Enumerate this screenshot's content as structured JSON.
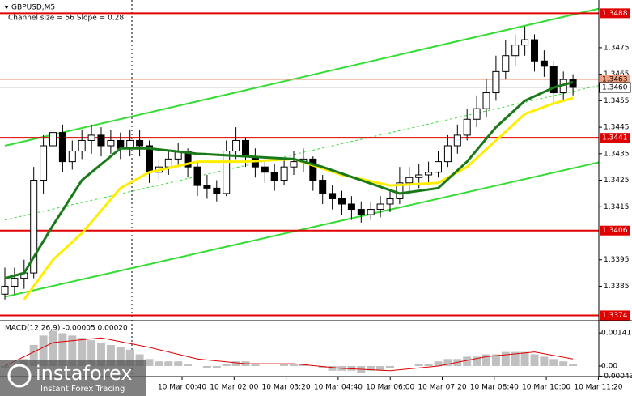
{
  "chart_data": {
    "type": "candlestick",
    "symbol_label": "GBPUSD,M5",
    "subtitle": "Channel size = 56 Slope = 0.28",
    "candles": [
      [
        1.3382,
        1.3392,
        1.338,
        1.3385
      ],
      [
        1.3385,
        1.3392,
        1.3382,
        1.3388
      ],
      [
        1.3388,
        1.3395,
        1.3384,
        1.339
      ],
      [
        1.339,
        1.343,
        1.3388,
        1.3425
      ],
      [
        1.3425,
        1.3442,
        1.342,
        1.3438
      ],
      [
        1.3438,
        1.3447,
        1.3432,
        1.3443
      ],
      [
        1.3443,
        1.3446,
        1.3428,
        1.3432
      ],
      [
        1.3432,
        1.344,
        1.3429,
        1.3436
      ],
      [
        1.3436,
        1.3444,
        1.3433,
        1.344
      ],
      [
        1.344,
        1.3446,
        1.3435,
        1.3442
      ],
      [
        1.3442,
        1.3445,
        1.3434,
        1.3438
      ],
      [
        1.3438,
        1.3444,
        1.3435,
        1.344
      ],
      [
        1.344,
        1.3443,
        1.3433,
        1.3437
      ],
      [
        1.3437,
        1.3444,
        1.3434,
        1.344
      ],
      [
        1.344,
        1.3444,
        1.3434,
        1.3438
      ],
      [
        1.3438,
        1.344,
        1.3424,
        1.3428
      ],
      [
        1.3428,
        1.3433,
        1.3425,
        1.343
      ],
      [
        1.343,
        1.3436,
        1.3427,
        1.3433
      ],
      [
        1.3433,
        1.3439,
        1.343,
        1.3436
      ],
      [
        1.3436,
        1.3437,
        1.3426,
        1.343
      ],
      [
        1.343,
        1.3432,
        1.3419,
        1.3423
      ],
      [
        1.3423,
        1.3427,
        1.3418,
        1.3422
      ],
      [
        1.3422,
        1.3425,
        1.3417,
        1.342
      ],
      [
        1.342,
        1.344,
        1.3419,
        1.3436
      ],
      [
        1.3436,
        1.3445,
        1.3433,
        1.344
      ],
      [
        1.344,
        1.3441,
        1.343,
        1.3434
      ],
      [
        1.3434,
        1.3437,
        1.3426,
        1.343
      ],
      [
        1.343,
        1.3433,
        1.3424,
        1.3428
      ],
      [
        1.3428,
        1.3431,
        1.3421,
        1.3425
      ],
      [
        1.3425,
        1.3433,
        1.3423,
        1.343
      ],
      [
        1.343,
        1.3436,
        1.3427,
        1.3432
      ],
      [
        1.3432,
        1.3437,
        1.3428,
        1.3433
      ],
      [
        1.3433,
        1.3434,
        1.3421,
        1.3425
      ],
      [
        1.3425,
        1.3427,
        1.3416,
        1.342
      ],
      [
        1.342,
        1.3423,
        1.3414,
        1.3418
      ],
      [
        1.3418,
        1.3421,
        1.3412,
        1.3416
      ],
      [
        1.3416,
        1.3419,
        1.341,
        1.3414
      ],
      [
        1.3414,
        1.3417,
        1.3409,
        1.3412
      ],
      [
        1.3412,
        1.3417,
        1.341,
        1.3414
      ],
      [
        1.3414,
        1.3419,
        1.3411,
        1.3416
      ],
      [
        1.3416,
        1.3421,
        1.3413,
        1.3418
      ],
      [
        1.3418,
        1.343,
        1.3416,
        1.3424
      ],
      [
        1.3424,
        1.343,
        1.342,
        1.3426
      ],
      [
        1.3426,
        1.3431,
        1.3422,
        1.3427
      ],
      [
        1.3427,
        1.3432,
        1.3423,
        1.3428
      ],
      [
        1.3428,
        1.3436,
        1.3426,
        1.3432
      ],
      [
        1.3432,
        1.3442,
        1.343,
        1.3438
      ],
      [
        1.3438,
        1.3446,
        1.3435,
        1.3442
      ],
      [
        1.3442,
        1.3452,
        1.344,
        1.3448
      ],
      [
        1.3448,
        1.3457,
        1.3445,
        1.3452
      ],
      [
        1.3452,
        1.3463,
        1.3449,
        1.3458
      ],
      [
        1.3458,
        1.3472,
        1.3455,
        1.3466
      ],
      [
        1.3466,
        1.3478,
        1.3463,
        1.3472
      ],
      [
        1.3472,
        1.348,
        1.3468,
        1.3476
      ],
      [
        1.3476,
        1.3483,
        1.3472,
        1.3478
      ],
      [
        1.3478,
        1.348,
        1.3466,
        1.347
      ],
      [
        1.347,
        1.3474,
        1.3464,
        1.3468
      ],
      [
        1.3468,
        1.347,
        1.3454,
        1.3458
      ],
      [
        1.3458,
        1.3466,
        1.3455,
        1.3463
      ],
      [
        1.3463,
        1.3465,
        1.3457,
        1.346
      ]
    ],
    "candle_colors": {
      "up": "#ffffff",
      "down": "#000000"
    },
    "ylim": [
      1.3372,
      1.3493
    ],
    "yticks": [
      1.3475,
      1.3465,
      1.3455,
      1.3445,
      1.3435,
      1.3425,
      1.3415,
      1.3395,
      1.3385
    ],
    "x_labels": [
      "10 Mar 00:40",
      "10 Mar 02:00",
      "10 Mar 03:20",
      "10 Mar 04:40",
      "10 Mar 06:00",
      "10 Mar 07:20",
      "10 Mar 08:40",
      "10 Mar 10:00",
      "10 Mar 11:20"
    ],
    "moving_averages": [
      {
        "color": "#ffee00",
        "x": [
          2,
          5,
          8,
          12,
          15,
          20,
          25,
          30,
          35,
          40,
          45,
          48,
          51,
          54,
          57,
          59
        ],
        "values": [
          1.338,
          1.3395,
          1.3405,
          1.3422,
          1.3428,
          1.3432,
          1.3432,
          1.3433,
          1.3427,
          1.3423,
          1.3424,
          1.343,
          1.344,
          1.345,
          1.3454,
          1.3456
        ]
      },
      {
        "color": "#1a7a1a",
        "x": [
          0,
          2,
          5,
          8,
          12,
          15,
          20,
          25,
          30,
          33,
          37,
          41,
          45,
          48,
          51,
          54,
          57,
          59
        ],
        "values": [
          1.3388,
          1.339,
          1.3408,
          1.3425,
          1.3437,
          1.3437,
          1.3435,
          1.3434,
          1.3433,
          1.343,
          1.3425,
          1.342,
          1.3422,
          1.3432,
          1.3445,
          1.3455,
          1.346,
          1.3462
        ]
      }
    ],
    "channel": {
      "color": "#33dd33",
      "x": [
        0,
        62
      ],
      "upper": [
        1.3438,
        1.349
      ],
      "middle": [
        1.341,
        1.3461
      ],
      "lower": [
        1.3381,
        1.3432
      ]
    },
    "levels": [
      {
        "value": 1.3488,
        "color": "#e00000"
      },
      {
        "value": 1.3441,
        "color": "#e00000"
      },
      {
        "value": 1.3406,
        "color": "#e00000"
      },
      {
        "value": 1.3374,
        "color": "#e00000"
      },
      {
        "value": 1.3463,
        "color": "#f0a080"
      }
    ],
    "current_price": {
      "value": 1.346,
      "label": "1.3460"
    },
    "macd": {
      "title": "MACD(12,26,9) -0.00005 0.00020",
      "histogram_color": "#c0c0c0",
      "histogram": [
        -0.0001,
        0,
        0.0003,
        0.0009,
        0.0013,
        0.0015,
        0.0014,
        0.0013,
        0.0012,
        0.0011,
        0.001,
        0.0009,
        0.0008,
        0.0007,
        0.0005,
        0.0003,
        0.0002,
        0.0002,
        0.0002,
        0.0001,
        0,
        -0.0001,
        -0.0001,
        0.0001,
        0.0002,
        0.0002,
        0.0001,
        0,
        0,
        0.0001,
        0.0001,
        0.0001,
        0,
        -0.0001,
        -0.0002,
        -0.0002,
        -0.0002,
        -0.0003,
        -0.0002,
        -0.0002,
        -0.0001,
        0,
        0,
        0.0001,
        0.0001,
        0.0002,
        0.0003,
        0.0003,
        0.0004,
        0.0004,
        0.0005,
        0.0005,
        0.0006,
        0.0006,
        0.0006,
        0.0005,
        0.0004,
        0.0003,
        0.0002,
        0.0001
      ],
      "signal": {
        "color": "#e00000",
        "x": [
          0,
          5,
          10,
          15,
          20,
          25,
          30,
          35,
          40,
          45,
          50,
          55,
          59
        ],
        "values": [
          0,
          0.001,
          0.0012,
          0.0008,
          0.0003,
          0.0001,
          0.0001,
          -0.0001,
          -0.0002,
          0,
          0.0004,
          0.0006,
          0.0003
        ]
      },
      "ylim": [
        -0.00045,
        0.0019
      ],
      "yticks": [
        0.00141,
        {
          "value": 0,
          "label": "0.00"
        },
        -0.00043
      ]
    }
  },
  "watermark": {
    "brand": "instaforex",
    "tagline": "Instant Forex Tracing"
  }
}
